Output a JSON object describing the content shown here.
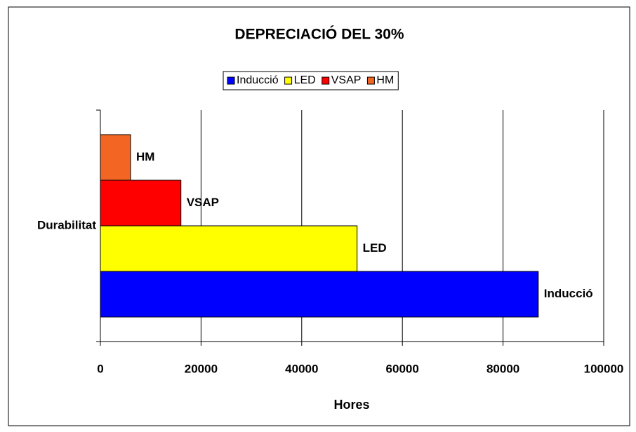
{
  "chart_data": {
    "type": "bar",
    "orientation": "horizontal",
    "title": "DEPRECIACIÓ DEL 30%",
    "categories": [
      "Durabilitat"
    ],
    "series": [
      {
        "name": "Inducció",
        "color": "#0000ff",
        "values": [
          87000
        ]
      },
      {
        "name": "LED",
        "color": "#ffff00",
        "values": [
          51000
        ]
      },
      {
        "name": "VSAP",
        "color": "#ff0000",
        "values": [
          16000
        ]
      },
      {
        "name": "HM",
        "color": "#f26522",
        "values": [
          6000
        ]
      }
    ],
    "x_label": "Hores",
    "xlim": [
      0,
      100000
    ],
    "xticks": [
      0,
      20000,
      40000,
      60000,
      80000,
      100000
    ],
    "grid": true,
    "legend": "top"
  }
}
